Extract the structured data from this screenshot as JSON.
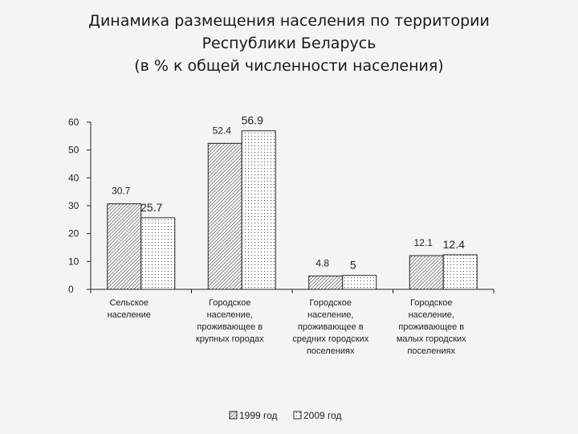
{
  "title": {
    "line1": "Динамика размещения населения по территории",
    "line2": "Республики Беларусь",
    "line3": "(в % к общей численности населения)"
  },
  "chart_data": {
    "type": "bar",
    "title": "Динамика размещения населения по территории Республики Беларусь (в % к общей численности населения)",
    "categories": [
      [
        "Сельское",
        "население"
      ],
      [
        "Городское",
        "население,",
        "проживающее в",
        "крупных городах"
      ],
      [
        "Городское",
        "население,",
        "проживающее в",
        "средних городских",
        "поселениях"
      ],
      [
        "Городское",
        "население,",
        "проживающее в",
        "малых городских",
        "поселениях"
      ]
    ],
    "series": [
      {
        "name": "1999 год",
        "values": [
          30.7,
          52.4,
          4.8,
          12.1
        ],
        "labels": [
          "30.7",
          "52.4",
          "4.8",
          "12.1"
        ],
        "pattern": "hatch"
      },
      {
        "name": "2009 год",
        "values": [
          25.7,
          56.9,
          5,
          12.4
        ],
        "labels": [
          "25.7",
          "56.9",
          "5",
          "12.4"
        ],
        "pattern": "dots"
      }
    ],
    "yticks": [
      "0",
      "10",
      "20",
      "30",
      "40",
      "50",
      "60"
    ],
    "ylim": [
      0,
      60
    ],
    "grid": false,
    "legend": "bottom"
  }
}
